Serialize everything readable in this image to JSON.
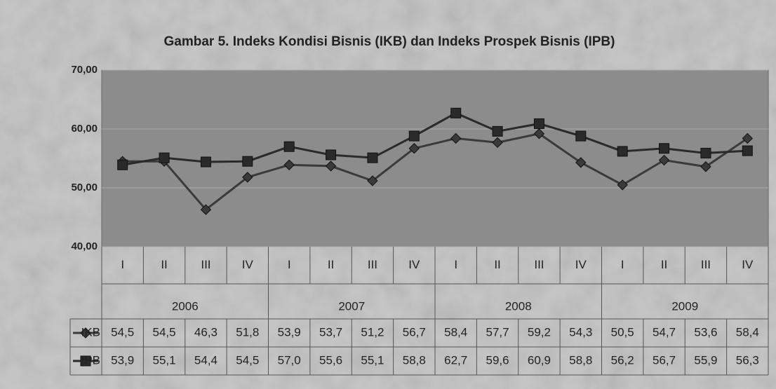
{
  "chart_data": {
    "type": "line",
    "title": "Gambar 5. Indeks Kondisi Bisnis (IKB) dan Indeks Prospek Bisnis (IPB)",
    "categories": [
      "I",
      "II",
      "III",
      "IV",
      "I",
      "II",
      "III",
      "IV",
      "I",
      "II",
      "III",
      "IV",
      "I",
      "II",
      "III",
      "IV"
    ],
    "category_groups": [
      "2006",
      "2007",
      "2008",
      "2009"
    ],
    "series": [
      {
        "name": "IKB",
        "color": "#3a3a3a",
        "marker": "diamond",
        "values": [
          54.5,
          54.5,
          46.3,
          51.8,
          53.9,
          53.7,
          51.2,
          56.7,
          58.4,
          57.7,
          59.2,
          54.3,
          50.5,
          54.7,
          53.6,
          58.4
        ],
        "value_labels": [
          "54,5",
          "54,5",
          "46,3",
          "51,8",
          "53,9",
          "53,7",
          "51,2",
          "56,7",
          "58,4",
          "57,7",
          "59,2",
          "54,3",
          "50,5",
          "54,7",
          "53,6",
          "58,4"
        ]
      },
      {
        "name": "IPB",
        "color": "#2a2a2a",
        "marker": "square",
        "values": [
          53.9,
          55.1,
          54.4,
          54.5,
          57.0,
          55.6,
          55.1,
          58.8,
          62.7,
          59.6,
          60.9,
          58.8,
          56.2,
          56.7,
          55.9,
          56.3
        ],
        "value_labels": [
          "53,9",
          "55,1",
          "54,4",
          "54,5",
          "57,0",
          "55,6",
          "55,1",
          "58,8",
          "62,7",
          "59,6",
          "60,9",
          "58,8",
          "56,2",
          "56,7",
          "55,9",
          "56,3"
        ]
      }
    ],
    "ylim": [
      40,
      70
    ],
    "yticks": [
      {
        "value": 40,
        "label": "40,00"
      },
      {
        "value": 50,
        "label": "50,00"
      },
      {
        "value": 60,
        "label": "60,00"
      },
      {
        "value": 70,
        "label": "70,00"
      }
    ],
    "grid": true,
    "data_table": true
  }
}
